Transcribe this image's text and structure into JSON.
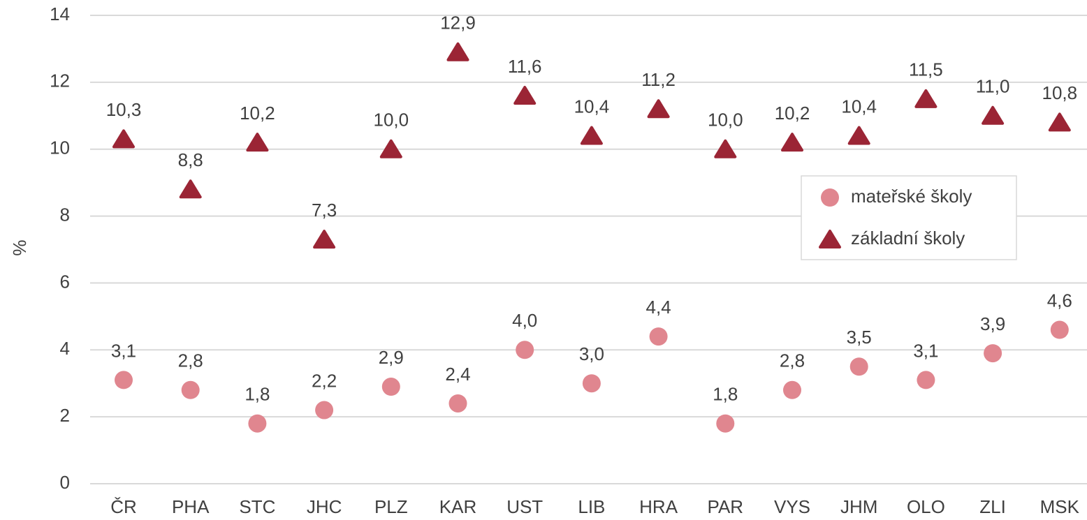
{
  "chart_data": {
    "type": "scatter",
    "y_label": "%",
    "categories": [
      "ČR",
      "PHA",
      "STC",
      "JHC",
      "PLZ",
      "KAR",
      "UST",
      "LIB",
      "HRA",
      "PAR",
      "VYS",
      "JHM",
      "OLO",
      "ZLI",
      "MSK"
    ],
    "series": [
      {
        "name": "mateřské školy",
        "color": "#e0868f",
        "marker": "circle",
        "values": [
          3.1,
          2.8,
          1.8,
          2.2,
          2.9,
          2.4,
          4.0,
          3.0,
          4.4,
          1.8,
          2.8,
          3.5,
          3.1,
          3.9,
          4.6
        ],
        "value_labels": [
          "3,1",
          "2,8",
          "1,8",
          "2,2",
          "2,9",
          "2,4",
          "4,0",
          "3,0",
          "4,4",
          "1,8",
          "2,8",
          "3,5",
          "3,1",
          "3,9",
          "4,6"
        ]
      },
      {
        "name": "základní školy",
        "color": "#9b2535",
        "marker": "triangle",
        "values": [
          10.3,
          8.8,
          10.2,
          7.3,
          10.0,
          12.9,
          11.6,
          10.4,
          11.2,
          10.0,
          10.2,
          10.4,
          11.5,
          11.0,
          10.8
        ],
        "value_labels": [
          "10,3",
          "8,8",
          "10,2",
          "7,3",
          "10,0",
          "12,9",
          "11,6",
          "10,4",
          "11,2",
          "10,0",
          "10,2",
          "10,4",
          "11,5",
          "11,0",
          "10,8"
        ]
      }
    ],
    "ylim": [
      0,
      14
    ],
    "yticks": [
      0,
      2,
      4,
      6,
      8,
      10,
      12,
      14
    ],
    "grid": true,
    "legend": "right"
  }
}
